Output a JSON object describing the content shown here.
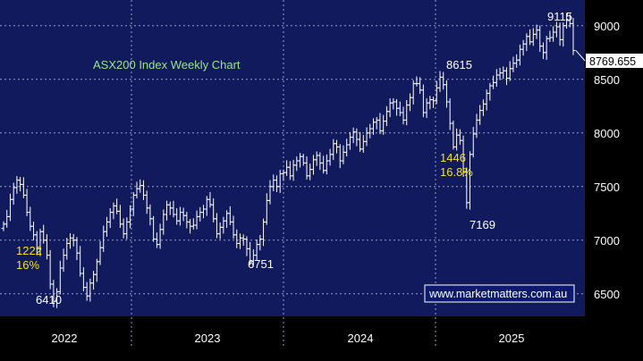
{
  "chart_data": {
    "type": "ohlc",
    "title": "ASX200 Index Weekly Chart",
    "xlabel": "",
    "ylabel": "",
    "ylim": [
      6290,
      9240
    ],
    "x_years": [
      "2022",
      "2023",
      "2024",
      "2025"
    ],
    "y_ticks": [
      6500,
      7000,
      7500,
      8000,
      8500,
      9000
    ],
    "grid": true,
    "last_price": "8769.655",
    "annotations": {
      "low_2022": "6410",
      "high_2024": "8615",
      "low_2023": "6751",
      "high_2025": "9115",
      "low_2025": "7169",
      "fall_2022_points": "1222",
      "fall_2022_pct": "16%",
      "fall_2025_points": "1446",
      "fall_2025_pct": "16.8%"
    },
    "watermark": "www.marketmatters.com.au",
    "weekly_closes": [
      7150,
      7220,
      7380,
      7490,
      7560,
      7520,
      7420,
      7260,
      7130,
      7050,
      6920,
      7080,
      7000,
      6860,
      6590,
      6430,
      6520,
      6740,
      6860,
      6970,
      7020,
      7000,
      6880,
      6690,
      6560,
      6480,
      6600,
      6680,
      6800,
      6930,
      7080,
      7170,
      7260,
      7320,
      7270,
      7150,
      7060,
      7170,
      7290,
      7420,
      7480,
      7510,
      7420,
      7300,
      7200,
      7010,
      6960,
      7100,
      7240,
      7330,
      7300,
      7240,
      7180,
      7260,
      7230,
      7170,
      7130,
      7140,
      7220,
      7260,
      7290,
      7380,
      7330,
      7200,
      7060,
      7120,
      7180,
      7250,
      7170,
      7050,
      6970,
      7020,
      7010,
      6920,
      6800,
      6860,
      6960,
      7010,
      7170,
      7370,
      7500,
      7560,
      7500,
      7620,
      7630,
      7680,
      7600,
      7700,
      7740,
      7780,
      7720,
      7600,
      7660,
      7750,
      7790,
      7720,
      7650,
      7740,
      7800,
      7900,
      7870,
      7740,
      7820,
      7890,
      7960,
      8010,
      7940,
      7850,
      7920,
      8000,
      8040,
      8100,
      8120,
      8020,
      8110,
      8200,
      8280,
      8290,
      8230,
      8190,
      8120,
      8260,
      8330,
      8460,
      8460,
      8400,
      8190,
      8280,
      8310,
      8300,
      8420,
      8520,
      8450,
      8290,
      8090,
      7870,
      7980,
      7930,
      7640,
      7350,
      7800,
      7990,
      8120,
      8210,
      8270,
      8370,
      8440,
      8470,
      8540,
      8560,
      8580,
      8510,
      8600,
      8650,
      8680,
      8780,
      8830,
      8900,
      8850,
      8920,
      8960,
      8810,
      8750,
      8880,
      8890,
      8940,
      8990,
      8870,
      9000,
      9050,
      9020,
      8769
    ]
  }
}
